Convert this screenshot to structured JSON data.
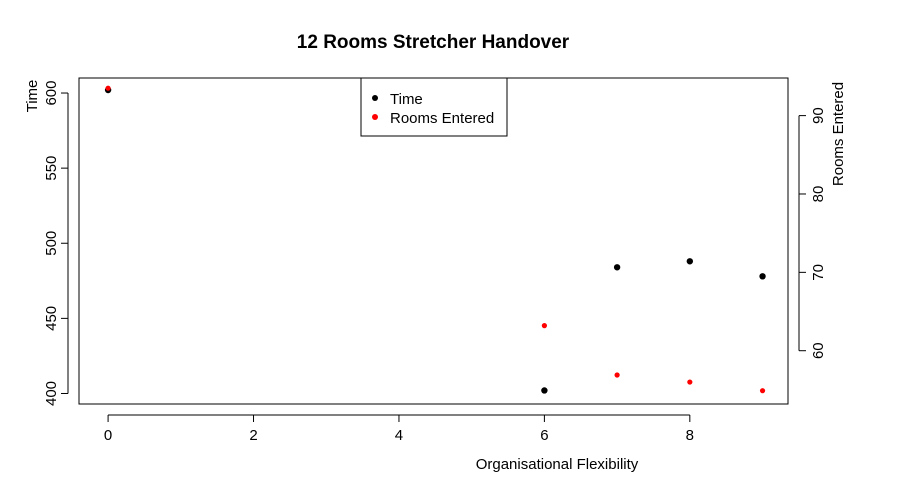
{
  "chart_data": {
    "type": "scatter",
    "title": "12 Rooms Stretcher Handover",
    "xlabel": "Organisational Flexibility",
    "ylabel_left": "Time",
    "ylabel_right": "Rooms Entered",
    "x_ticks": [
      "0",
      "2",
      "4",
      "6",
      "8"
    ],
    "y_left_ticks": [
      "400",
      "450",
      "500",
      "550",
      "600"
    ],
    "y_right_ticks": [
      "60",
      "70",
      "80",
      "90"
    ],
    "xlim": [
      -0.4,
      9.35
    ],
    "ylim_left": [
      393,
      610
    ],
    "ylim_right": [
      53.2,
      94.8
    ],
    "legend_position": "top-center",
    "series": [
      {
        "name": "Time",
        "axis": "left",
        "color": "#000000",
        "points": [
          {
            "x": 0,
            "y": 602
          },
          {
            "x": 6,
            "y": 402
          },
          {
            "x": 7,
            "y": 484
          },
          {
            "x": 8,
            "y": 488
          },
          {
            "x": 9,
            "y": 478
          }
        ]
      },
      {
        "name": "Rooms Entered",
        "axis": "right",
        "color": "#ff0000",
        "points": [
          {
            "x": 0,
            "y": 93.5
          },
          {
            "x": 6,
            "y": 63.2
          },
          {
            "x": 7,
            "y": 56.9
          },
          {
            "x": 8,
            "y": 56.0
          },
          {
            "x": 9,
            "y": 54.9
          }
        ]
      }
    ]
  }
}
